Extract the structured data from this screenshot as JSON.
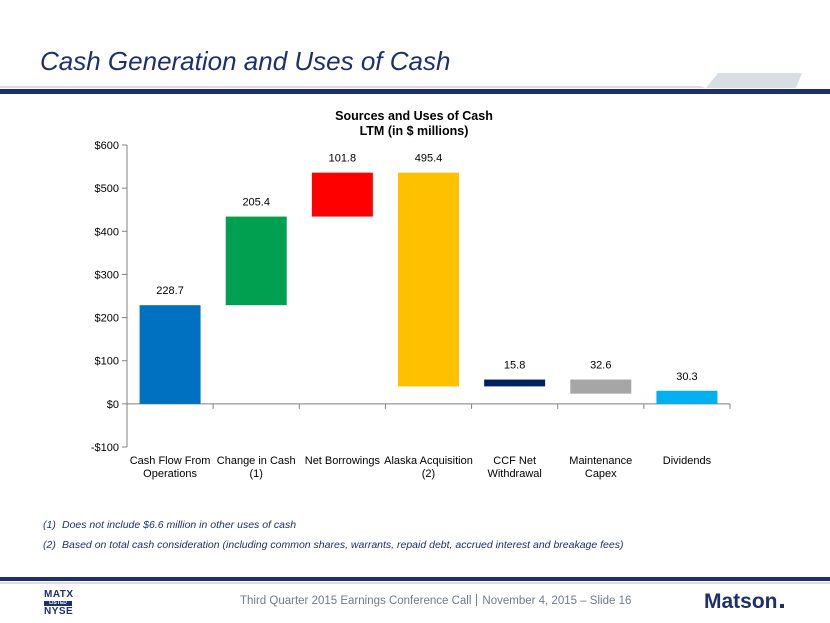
{
  "slide": {
    "title": "Cash Generation and Uses of Cash"
  },
  "colors": {
    "title": "#1d2f6f",
    "band_blue": "#1d2f6f",
    "band_light": "#d9dde4",
    "footer_text": "#6f7a8a"
  },
  "chart_data": {
    "type": "waterfall",
    "title": "Sources and Uses of Cash",
    "subtitle": "LTM (in $ millions)",
    "ylim": [
      -100,
      600
    ],
    "yticks": [
      -100,
      0,
      100,
      200,
      300,
      400,
      500,
      600
    ],
    "ytick_labels": [
      "-$100",
      "$0",
      "$100",
      "$200",
      "$300",
      "$400",
      "$500",
      "$600"
    ],
    "grid": false,
    "legend": "none",
    "bars": [
      {
        "label": [
          "Cash Flow From",
          "Operations"
        ],
        "start": 0,
        "end": 228.7,
        "value_label": "228.7",
        "color": "#0070c0"
      },
      {
        "label": [
          "Change in Cash",
          "(1)"
        ],
        "start": 228.7,
        "end": 434.1,
        "value_label": "205.4",
        "color": "#00a050"
      },
      {
        "label": [
          "Net Borrowings"
        ],
        "start": 434.1,
        "end": 535.9,
        "value_label": "101.8",
        "color": "#ff0000"
      },
      {
        "label": [
          "Alaska Acquisition",
          "(2)"
        ],
        "start": 535.9,
        "end": 40.5,
        "value_label": "495.4",
        "color": "#ffc000"
      },
      {
        "label": [
          "CCF Net",
          "Withdrawal"
        ],
        "start": 40.5,
        "end": 56.3,
        "value_label": "15.8",
        "color": "#002060"
      },
      {
        "label": [
          "Maintenance",
          "Capex"
        ],
        "start": 56.3,
        "end": 23.7,
        "value_label": "32.6",
        "color": "#a6a6a6"
      },
      {
        "label": [
          "Dividends"
        ],
        "start": 30.3,
        "end": 0,
        "value_label": "30.3",
        "color": "#00b0f0"
      }
    ]
  },
  "notes": [
    {
      "num": "(1)",
      "text": "Does not include $6.6 million in other uses of cash"
    },
    {
      "num": "(2)",
      "text": "Based on total cash consideration (including common shares, warrants, repaid debt, accrued interest and breakage fees)"
    }
  ],
  "footer": {
    "ticker_top": "MATX",
    "ticker_mid": "LISTED",
    "ticker_bottom": "NYSE",
    "left_text": "Third Quarter 2015 Earnings Conference Call",
    "right_text": "November 4, 2015 – Slide 16",
    "logo": "Matson"
  }
}
